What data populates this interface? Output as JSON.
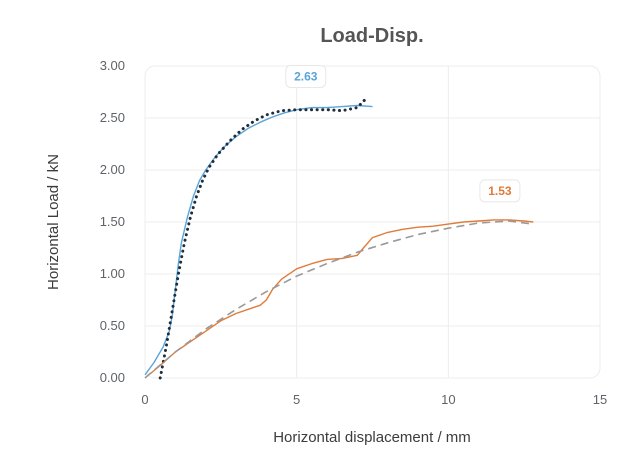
{
  "chart_data": {
    "type": "line",
    "title": "Load-Disp.",
    "xlabel": "Horizontal displacement / mm",
    "ylabel": "Horizontal Load / kN",
    "xlim": [
      0,
      15
    ],
    "ylim": [
      0,
      3
    ],
    "xticks": [
      0,
      5,
      10,
      15
    ],
    "xtick_labels": [
      "0",
      "5",
      "10",
      "15"
    ],
    "yticks": [
      0,
      0.5,
      1,
      1.5,
      2,
      2.5,
      3
    ],
    "ytick_labels": [
      "0.00",
      "0.50",
      "1.00",
      "1.50",
      "2.00",
      "2.50",
      "3.00"
    ],
    "grid": true,
    "legend": "none",
    "series": [
      {
        "style": "measured-blue",
        "color": "#5ba4d8",
        "x": [
          0,
          0.3,
          0.6,
          0.8,
          0.9,
          1.0,
          1.1,
          1.2,
          1.4,
          1.6,
          1.8,
          2.0,
          2.3,
          2.6,
          3.0,
          3.4,
          3.8,
          4.2,
          4.6,
          5.0,
          5.5,
          6.0,
          6.5,
          7.0,
          7.5
        ],
        "y": [
          0.03,
          0.15,
          0.3,
          0.45,
          0.6,
          0.85,
          1.1,
          1.3,
          1.55,
          1.75,
          1.9,
          2.0,
          2.12,
          2.22,
          2.32,
          2.4,
          2.46,
          2.51,
          2.55,
          2.58,
          2.6,
          2.6,
          2.61,
          2.62,
          2.61
        ]
      },
      {
        "style": "model-dotted",
        "color": "#1f2d3d",
        "x": [
          0.5,
          0.7,
          0.9,
          1.1,
          1.3,
          1.5,
          1.7,
          1.9,
          2.1,
          2.4,
          2.8,
          3.2,
          3.6,
          4.0,
          4.5,
          5.0,
          5.5,
          6.0,
          6.5,
          7.0,
          7.3
        ],
        "y": [
          0.0,
          0.3,
          0.65,
          1.0,
          1.3,
          1.55,
          1.75,
          1.9,
          2.02,
          2.15,
          2.28,
          2.39,
          2.47,
          2.53,
          2.57,
          2.58,
          2.58,
          2.58,
          2.57,
          2.6,
          2.69
        ]
      },
      {
        "style": "measured-orange",
        "color": "#e07b39",
        "x": [
          0,
          0.5,
          1.0,
          1.5,
          2.0,
          2.5,
          3.0,
          3.5,
          3.8,
          4.0,
          4.2,
          4.5,
          5.0,
          5.5,
          6.0,
          6.5,
          7.0,
          7.2,
          7.5,
          8.0,
          8.5,
          9.0,
          9.5,
          10.0,
          10.5,
          11.0,
          11.5,
          12.0,
          12.5,
          12.8
        ],
        "y": [
          0.0,
          0.12,
          0.25,
          0.35,
          0.45,
          0.55,
          0.62,
          0.67,
          0.7,
          0.75,
          0.85,
          0.95,
          1.05,
          1.1,
          1.14,
          1.15,
          1.18,
          1.25,
          1.35,
          1.4,
          1.43,
          1.45,
          1.46,
          1.48,
          1.5,
          1.51,
          1.52,
          1.52,
          1.51,
          1.5
        ]
      },
      {
        "style": "model-dashed",
        "color": "#9a9a9a",
        "x": [
          0,
          1,
          2,
          3,
          4,
          5,
          6,
          7,
          8,
          9,
          10,
          11,
          12,
          12.8
        ],
        "y": [
          0.0,
          0.25,
          0.47,
          0.66,
          0.83,
          0.98,
          1.1,
          1.21,
          1.3,
          1.38,
          1.44,
          1.49,
          1.51,
          1.48
        ]
      }
    ],
    "annotations": [
      {
        "text": "2.63",
        "x": 5.3,
        "color": "#5ba4d8"
      },
      {
        "text": "1.53",
        "x": 11.7,
        "color": "#e07b39"
      }
    ]
  }
}
